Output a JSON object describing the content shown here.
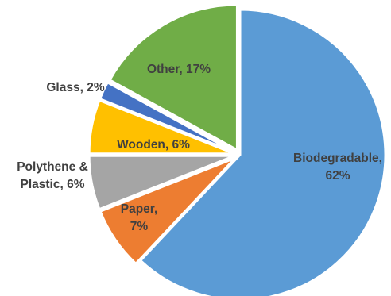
{
  "chart_data": {
    "type": "pie",
    "title": "",
    "slices": [
      {
        "name": "Biodegradable",
        "value": 62,
        "color": "#5B9BD5",
        "label_lines": [
          "Biodegradable,",
          "62%"
        ]
      },
      {
        "name": "Paper",
        "value": 7,
        "color": "#ED7D31",
        "label_lines": [
          "Paper,",
          "7%"
        ]
      },
      {
        "name": "Polythene & Plastic",
        "value": 6,
        "color": "#A5A5A5",
        "label_lines": [
          "Polythene &",
          "Plastic, 6%"
        ]
      },
      {
        "name": "Wooden",
        "value": 6,
        "color": "#FFC000",
        "label_lines": [
          "Wooden, 6%"
        ]
      },
      {
        "name": "Glass",
        "value": 2,
        "color": "#4472C4",
        "label_lines": [
          "Glass, 2%"
        ]
      },
      {
        "name": "Other",
        "value": 17,
        "color": "#70AD47",
        "label_lines": [
          "Other, 17%"
        ]
      }
    ],
    "start": "12 o'clock",
    "direction": "clockwise",
    "legend": "none"
  }
}
